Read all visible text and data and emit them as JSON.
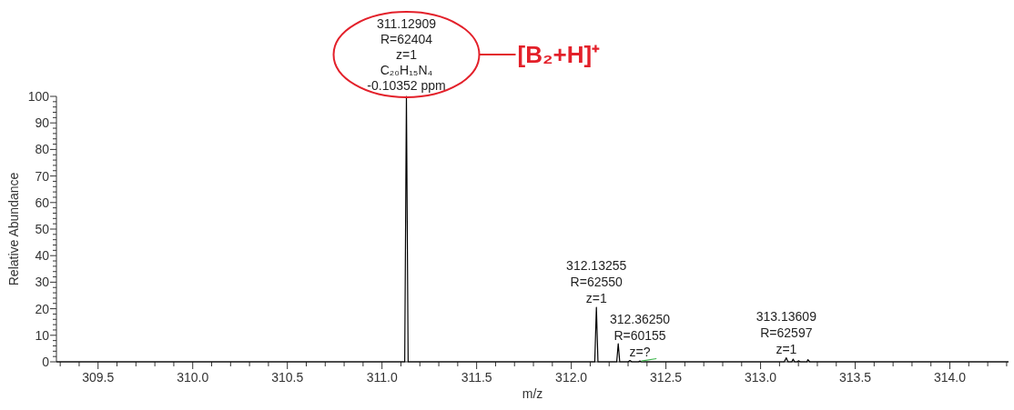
{
  "chart_data": {
    "type": "line",
    "xlabel": "m/z",
    "ylabel": "Relative Abundance",
    "xlim": [
      309.28,
      314.31
    ],
    "ylim": [
      0,
      100
    ],
    "xticks": [
      {
        "value": 309.3,
        "label": null
      },
      {
        "value": 309.4,
        "label": null
      },
      309.5,
      {
        "value": 309.6,
        "label": null
      },
      {
        "value": 309.7,
        "label": null
      },
      {
        "value": 309.8,
        "label": null
      },
      {
        "value": 309.9,
        "label": null
      },
      {
        "value": 310,
        "label": "310.0"
      },
      {
        "value": 310.1,
        "label": null
      },
      {
        "value": 310.2,
        "label": null
      },
      {
        "value": 310.3,
        "label": null
      },
      {
        "value": 310.4,
        "label": null
      },
      310.5,
      {
        "value": 310.6,
        "label": null
      },
      {
        "value": 310.7,
        "label": null
      },
      {
        "value": 310.8,
        "label": null
      },
      {
        "value": 310.9,
        "label": null
      },
      {
        "value": 311,
        "label": "311.0"
      },
      {
        "value": 311.1,
        "label": null
      },
      {
        "value": 311.2,
        "label": null
      },
      {
        "value": 311.3,
        "label": null
      },
      {
        "value": 311.4,
        "label": null
      },
      311.5,
      {
        "value": 311.6,
        "label": null
      },
      {
        "value": 311.7,
        "label": null
      },
      {
        "value": 311.8,
        "label": null
      },
      {
        "value": 311.9,
        "label": null
      },
      {
        "value": 312,
        "label": "312.0"
      },
      {
        "value": 312.1,
        "label": null
      },
      {
        "value": 312.2,
        "label": null
      },
      {
        "value": 312.3,
        "label": null
      },
      {
        "value": 312.4,
        "label": null
      },
      312.5,
      {
        "value": 312.6,
        "label": null
      },
      {
        "value": 312.7,
        "label": null
      },
      {
        "value": 312.8,
        "label": null
      },
      {
        "value": 312.9,
        "label": null
      },
      {
        "value": 313,
        "label": "313.0"
      },
      {
        "value": 313.1,
        "label": null
      },
      {
        "value": 313.2,
        "label": null
      },
      {
        "value": 313.3,
        "label": null
      },
      {
        "value": 313.4,
        "label": null
      },
      313.5,
      {
        "value": 313.6,
        "label": null
      },
      {
        "value": 313.7,
        "label": null
      },
      {
        "value": 313.8,
        "label": null
      },
      {
        "value": 313.9,
        "label": null
      },
      {
        "value": 314,
        "label": "314.0"
      },
      {
        "value": 314.1,
        "label": null
      },
      {
        "value": 314.2,
        "label": null
      },
      {
        "value": 314.3,
        "label": null
      }
    ],
    "yticks": [
      0,
      {
        "value": 2,
        "label": null
      },
      {
        "value": 4,
        "label": null
      },
      {
        "value": 6,
        "label": null
      },
      {
        "value": 8,
        "label": null
      },
      10,
      {
        "value": 12,
        "label": null
      },
      {
        "value": 14,
        "label": null
      },
      {
        "value": 16,
        "label": null
      },
      {
        "value": 18,
        "label": null
      },
      20,
      {
        "value": 22,
        "label": null
      },
      {
        "value": 24,
        "label": null
      },
      {
        "value": 26,
        "label": null
      },
      {
        "value": 28,
        "label": null
      },
      30,
      {
        "value": 32,
        "label": null
      },
      {
        "value": 34,
        "label": null
      },
      {
        "value": 36,
        "label": null
      },
      {
        "value": 38,
        "label": null
      },
      40,
      {
        "value": 42,
        "label": null
      },
      {
        "value": 44,
        "label": null
      },
      {
        "value": 46,
        "label": null
      },
      {
        "value": 48,
        "label": null
      },
      50,
      {
        "value": 52,
        "label": null
      },
      {
        "value": 54,
        "label": null
      },
      {
        "value": 56,
        "label": null
      },
      {
        "value": 58,
        "label": null
      },
      60,
      {
        "value": 62,
        "label": null
      },
      {
        "value": 64,
        "label": null
      },
      {
        "value": 66,
        "label": null
      },
      {
        "value": 68,
        "label": null
      },
      70,
      {
        "value": 72,
        "label": null
      },
      {
        "value": 74,
        "label": null
      },
      {
        "value": 76,
        "label": null
      },
      {
        "value": 78,
        "label": null
      },
      80,
      {
        "value": 82,
        "label": null
      },
      {
        "value": 84,
        "label": null
      },
      {
        "value": 86,
        "label": null
      },
      {
        "value": 88,
        "label": null
      },
      90,
      {
        "value": 92,
        "label": null
      },
      {
        "value": 94,
        "label": null
      },
      {
        "value": 96,
        "label": null
      },
      {
        "value": 98,
        "label": null
      },
      100
    ],
    "series": [
      {
        "color": "#000000",
        "x": [
          309.28,
          311.12,
          311.129,
          311.138,
          312.124,
          312.1326,
          312.141,
          312.24,
          312.248,
          312.256,
          312.3,
          312.31,
          312.32,
          312.355,
          312.3625,
          312.37,
          313.125,
          313.136,
          313.145,
          313.165,
          313.172,
          313.18,
          313.195,
          313.2,
          313.21,
          313.245,
          313.25,
          313.26,
          314.31
        ],
        "values": [
          0,
          0,
          100,
          0,
          0,
          20.5,
          0,
          0,
          6.8,
          0,
          0,
          0.5,
          0,
          0,
          0.3,
          0,
          0,
          1.5,
          0,
          0,
          1,
          0,
          0,
          0.4,
          0,
          0,
          0.8,
          0,
          0
        ]
      },
      {
        "color": "#3cb44b",
        "x": [
          312.37,
          312.45
        ],
        "values": [
          0.3,
          1.2
        ]
      }
    ],
    "annotations": [
      {
        "text": "311.12909\nR=62404\nz=1\nC₂₀H₁₅N₄\n-0.10352 ppm",
        "x": 311.129,
        "y": 100
      },
      "[B₂+H]⁺",
      {
        "text": "312.13255\nR=62550\nz=1",
        "x": 312.1326,
        "y": 20.5
      },
      {
        "text": "312.36250\nR=60155\nz=?",
        "x": 312.3625,
        "y": 0.3
      },
      {
        "text": "313.13609\nR=62597\nz=1",
        "x": 313.136,
        "y": 1.5
      }
    ]
  }
}
